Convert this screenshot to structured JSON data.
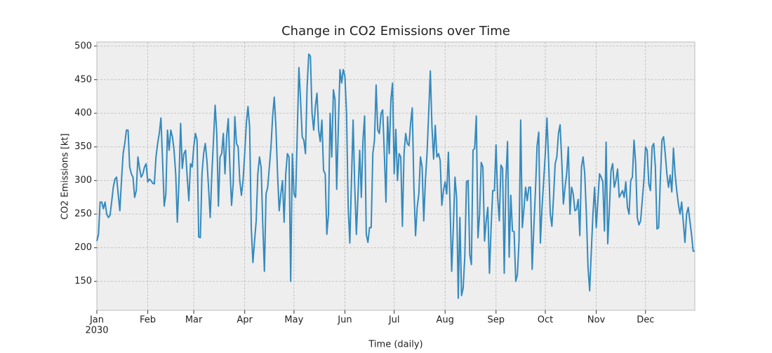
{
  "chart_data": {
    "type": "line",
    "title": "Change in CO2 Emissions over Time",
    "xlabel": "Time (daily)",
    "ylabel": "CO2 Emissions [kt]",
    "xtick_year": "2030",
    "color": "#348abd",
    "grid": true,
    "xlim": [
      0,
      364
    ],
    "xticks": [
      {
        "value": 0,
        "label": "Jan"
      },
      {
        "value": 31,
        "label": "Feb"
      },
      {
        "value": 59,
        "label": "Mar"
      },
      {
        "value": 90,
        "label": "Apr"
      },
      {
        "value": 120,
        "label": "May"
      },
      {
        "value": 151,
        "label": "Jun"
      },
      {
        "value": 181,
        "label": "Jul"
      },
      {
        "value": 212,
        "label": "Aug"
      },
      {
        "value": 243,
        "label": "Sep"
      },
      {
        "value": 273,
        "label": "Oct"
      },
      {
        "value": 304,
        "label": "Nov"
      },
      {
        "value": 334,
        "label": "Dec"
      }
    ],
    "ylim": [
      107,
      506
    ],
    "yticks": [
      150,
      200,
      250,
      300,
      350,
      400,
      450,
      500
    ],
    "values": [
      210,
      220,
      268,
      268,
      258,
      268,
      250,
      245,
      248,
      268,
      290,
      302,
      305,
      280,
      255,
      300,
      340,
      355,
      375,
      375,
      320,
      310,
      305,
      275,
      285,
      335,
      318,
      305,
      310,
      320,
      325,
      298,
      302,
      300,
      296,
      295,
      335,
      355,
      370,
      393,
      330,
      262,
      280,
      375,
      345,
      375,
      365,
      345,
      310,
      238,
      300,
      385,
      318,
      340,
      345,
      305,
      270,
      325,
      320,
      350,
      370,
      360,
      216,
      215,
      310,
      340,
      355,
      330,
      290,
      245,
      310,
      360,
      412,
      370,
      262,
      335,
      340,
      370,
      310,
      365,
      392,
      320,
      263,
      295,
      395,
      355,
      350,
      300,
      278,
      300,
      340,
      385,
      410,
      380,
      230,
      178,
      210,
      240,
      310,
      335,
      320,
      235,
      165,
      280,
      290,
      320,
      350,
      395,
      424,
      380,
      310,
      255,
      280,
      300,
      238,
      310,
      340,
      335,
      150,
      340,
      280,
      275,
      370,
      468,
      420,
      365,
      360,
      340,
      440,
      488,
      485,
      400,
      375,
      410,
      430,
      375,
      358,
      390,
      315,
      310,
      220,
      250,
      400,
      335,
      435,
      420,
      287,
      380,
      465,
      445,
      465,
      455,
      400,
      260,
      207,
      300,
      390,
      290,
      220,
      280,
      345,
      275,
      360,
      396,
      220,
      208,
      230,
      230,
      340,
      360,
      442,
      375,
      370,
      400,
      405,
      340,
      268,
      395,
      340,
      420,
      445,
      310,
      376,
      300,
      340,
      335,
      232,
      340,
      370,
      355,
      352,
      385,
      408,
      290,
      218,
      260,
      280,
      335,
      320,
      240,
      300,
      340,
      400,
      463,
      380,
      332,
      382,
      335,
      340,
      330,
      263,
      285,
      298,
      280,
      342,
      265,
      165,
      230,
      305,
      275,
      125,
      245,
      129,
      140,
      188,
      298,
      300,
      190,
      175,
      345,
      348,
      396,
      215,
      250,
      327,
      320,
      210,
      240,
      260,
      162,
      230,
      285,
      285,
      353,
      275,
      240,
      323,
      318,
      162,
      300,
      358,
      186,
      278,
      225,
      224,
      150,
      160,
      210,
      390,
      230,
      258,
      290,
      270,
      290,
      290,
      168,
      230,
      285,
      352,
      372,
      207,
      260,
      300,
      340,
      393,
      330,
      250,
      232,
      275,
      325,
      335,
      370,
      383,
      330,
      265,
      290,
      310,
      350,
      250,
      290,
      280,
      255,
      257,
      272,
      218,
      320,
      335,
      310,
      250,
      170,
      136,
      195,
      250,
      290,
      230,
      270,
      310,
      305,
      298,
      225,
      357,
      206,
      258,
      315,
      325,
      290,
      300,
      317,
      275,
      280,
      285,
      275,
      298,
      260,
      250,
      300,
      305,
      360,
      325,
      245,
      234,
      240,
      270,
      300,
      350,
      345,
      295,
      285,
      350,
      355,
      320,
      228,
      230,
      300,
      360,
      365,
      340,
      310,
      290,
      308,
      283,
      348,
      310,
      285,
      265,
      250,
      268,
      238,
      208,
      250,
      260,
      240,
      220,
      195,
      195
    ]
  }
}
